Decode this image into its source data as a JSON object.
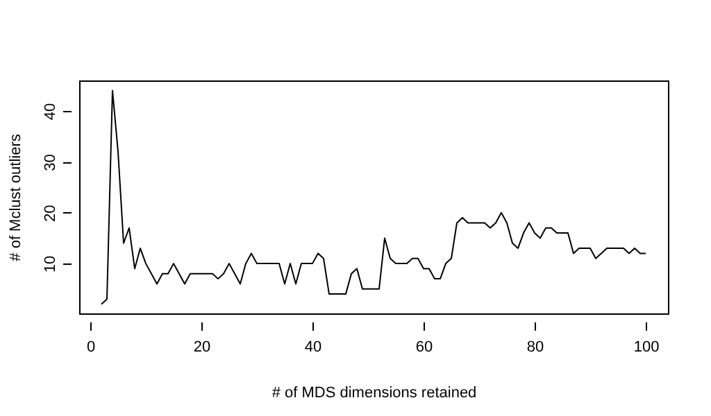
{
  "chart_data": {
    "type": "line",
    "xlabel": "# of MDS dimensions retained",
    "ylabel": "# of Mclust outliers",
    "x": [
      2,
      3,
      4,
      5,
      6,
      7,
      8,
      9,
      10,
      11,
      12,
      13,
      14,
      15,
      16,
      17,
      18,
      19,
      20,
      21,
      22,
      23,
      24,
      25,
      26,
      27,
      28,
      29,
      30,
      31,
      32,
      33,
      34,
      35,
      36,
      37,
      38,
      39,
      40,
      41,
      42,
      43,
      44,
      45,
      46,
      47,
      48,
      49,
      50,
      51,
      52,
      53,
      54,
      55,
      56,
      57,
      58,
      59,
      60,
      61,
      62,
      63,
      64,
      65,
      66,
      67,
      68,
      69,
      70,
      71,
      72,
      73,
      74,
      75,
      76,
      77,
      78,
      79,
      80,
      81,
      82,
      83,
      84,
      85,
      86,
      87,
      88,
      89,
      90,
      91,
      92,
      93,
      94,
      95,
      96,
      97,
      98,
      99,
      100
    ],
    "series": [
      {
        "color": "#000000",
        "values": [
          2,
          3,
          44,
          32,
          14,
          17,
          9,
          13,
          10,
          8,
          6,
          8,
          8,
          10,
          8,
          6,
          8,
          8,
          8,
          8,
          8,
          7,
          8,
          10,
          8,
          6,
          10,
          12,
          10,
          10,
          10,
          10,
          10,
          6,
          10,
          6,
          10,
          10,
          10,
          12,
          11,
          4,
          4,
          4,
          4,
          8,
          9,
          5,
          5,
          5,
          5,
          15,
          11,
          10,
          10,
          10,
          11,
          11,
          9,
          9,
          7,
          7,
          10,
          11,
          18,
          19,
          18,
          18,
          18,
          18,
          17,
          18,
          20,
          18,
          14,
          13,
          16,
          18,
          16,
          15,
          17,
          17,
          16,
          16,
          16,
          12,
          13,
          13,
          13,
          11,
          12,
          13,
          13,
          13,
          13,
          12,
          13,
          12,
          12
        ]
      }
    ],
    "xlim": [
      -2,
      104
    ],
    "ylim": [
      0.2,
      46
    ],
    "xticks": [
      0,
      20,
      40,
      60,
      80,
      100
    ],
    "yticks": [
      10,
      20,
      30,
      40
    ],
    "grid": false,
    "legend": false,
    "marker": "none",
    "line_style": "solid"
  }
}
